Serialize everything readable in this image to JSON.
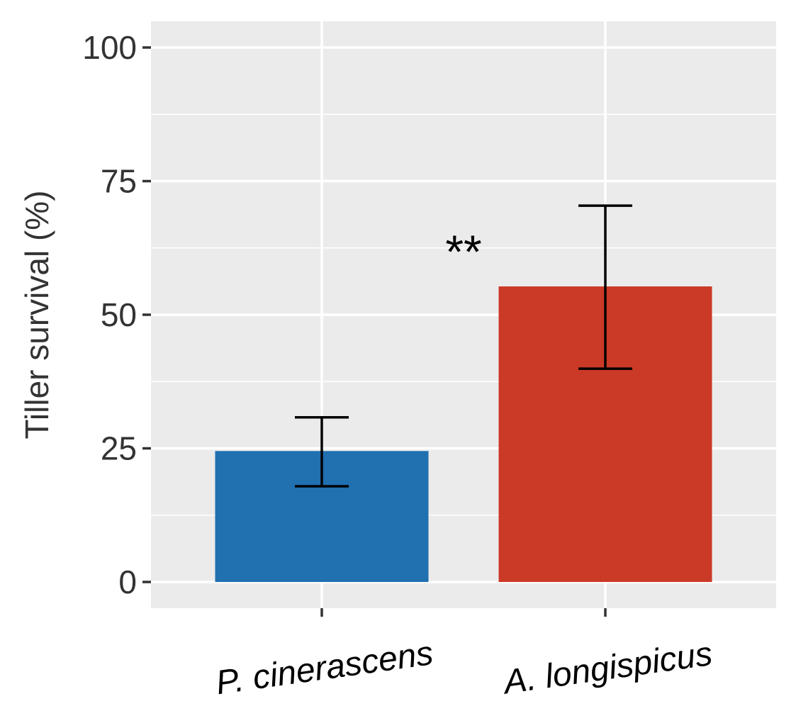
{
  "chart_data": {
    "type": "bar",
    "title": "",
    "xlabel": "",
    "ylabel": "Tiller survival (%)",
    "ylim": [
      -5,
      105
    ],
    "yticks": [
      0,
      25,
      50,
      75,
      100
    ],
    "categories": [
      "P. cinerascens",
      "A. longispicus"
    ],
    "values": [
      24.5,
      55.3
    ],
    "error_low": [
      17.9,
      39.9
    ],
    "error_high": [
      30.8,
      70.4
    ],
    "annotation": "**",
    "grid": true,
    "colors": {
      "bars": [
        "#2170b0",
        "#cb3a26"
      ],
      "panel": "#ebebeb",
      "grid": "#ffffff",
      "errorbar": "#000000"
    }
  }
}
